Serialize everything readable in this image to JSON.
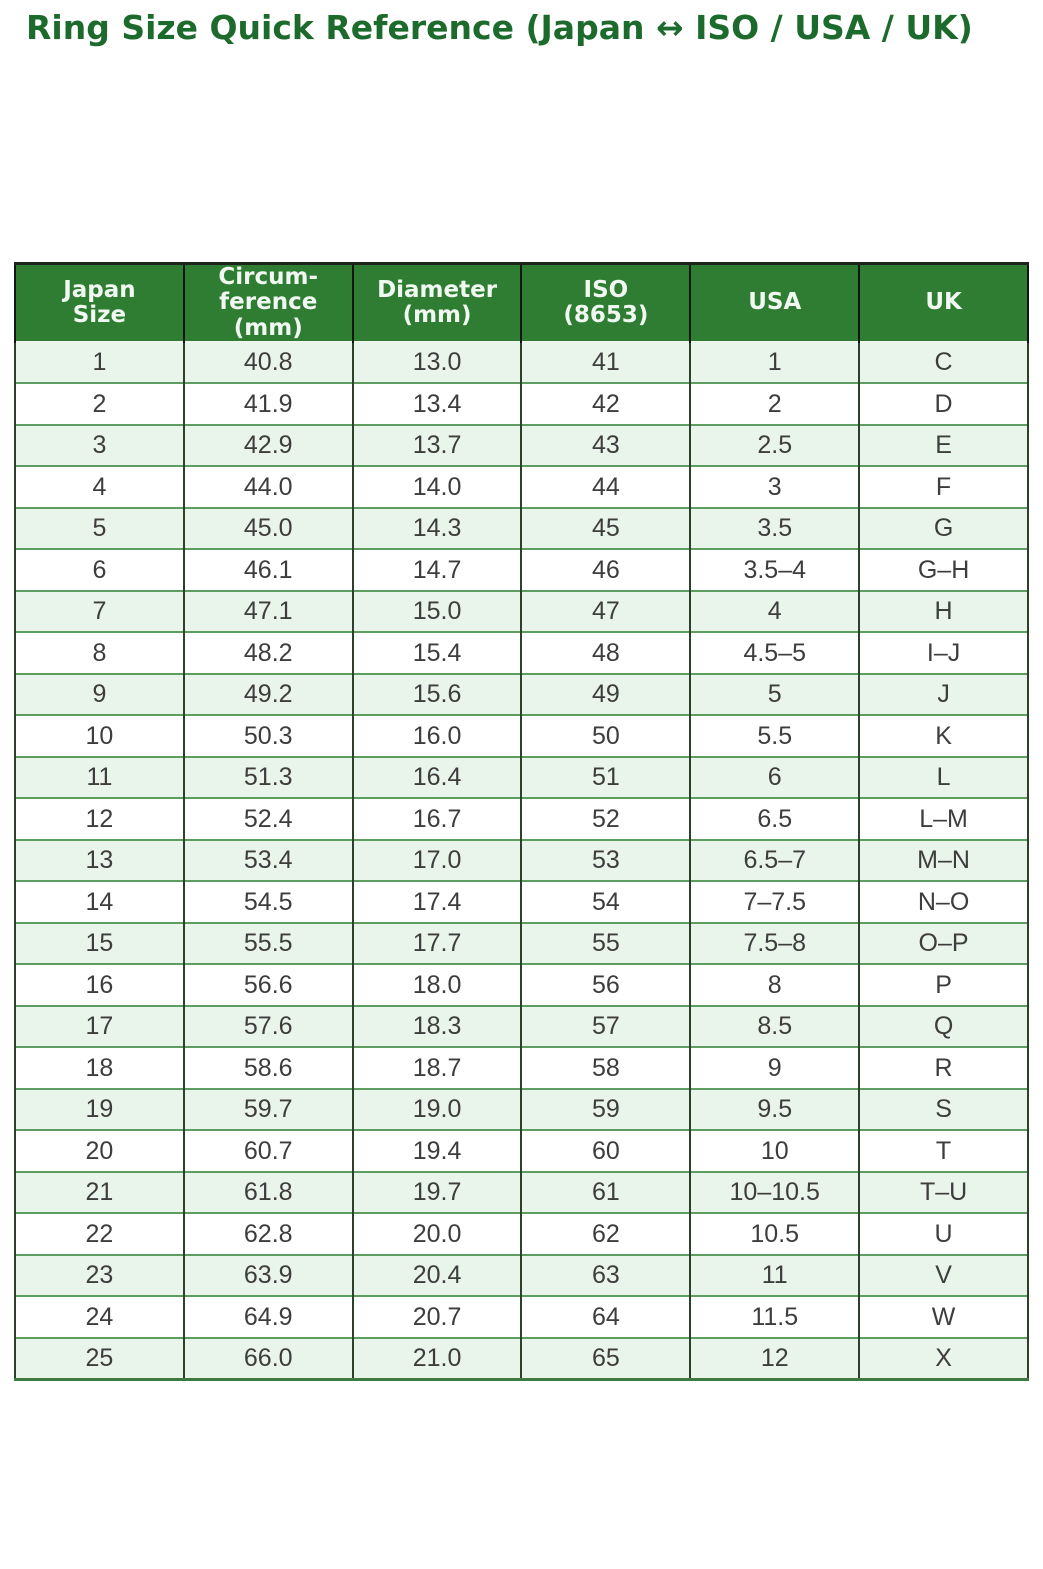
{
  "title": "Ring Size Quick Reference (Japan ↔ ISO / USA / UK)",
  "colors": {
    "title_text": "#1d6b2c",
    "header_bg": "#2e7d32",
    "header_text": "#f1f8f1",
    "row_alt_bg": "#e9f4ea",
    "row_bg": "#ffffff",
    "border_dark": "#2c402c",
    "border_green": "#5d9e60",
    "cell_text": "#3d3d3d"
  },
  "chart_data": {
    "type": "table",
    "title": "Ring Size Quick Reference (Japan ↔ ISO / USA / UK)",
    "columns": [
      "Japan Size",
      "Circumference (mm)",
      "Diameter (mm)",
      "ISO (8653)",
      "USA",
      "UK"
    ],
    "display_headers": [
      "Japan\nSize",
      "Circum-\nference\n(mm)",
      "Diameter\n(mm)",
      "ISO\n(8653)",
      "USA",
      "UK"
    ],
    "rows": [
      [
        "1",
        "40.8",
        "13.0",
        "41",
        "1",
        "C"
      ],
      [
        "2",
        "41.9",
        "13.4",
        "42",
        "2",
        "D"
      ],
      [
        "3",
        "42.9",
        "13.7",
        "43",
        "2.5",
        "E"
      ],
      [
        "4",
        "44.0",
        "14.0",
        "44",
        "3",
        "F"
      ],
      [
        "5",
        "45.0",
        "14.3",
        "45",
        "3.5",
        "G"
      ],
      [
        "6",
        "46.1",
        "14.7",
        "46",
        "3.5–4",
        "G–H"
      ],
      [
        "7",
        "47.1",
        "15.0",
        "47",
        "4",
        "H"
      ],
      [
        "8",
        "48.2",
        "15.4",
        "48",
        "4.5–5",
        "I–J"
      ],
      [
        "9",
        "49.2",
        "15.6",
        "49",
        "5",
        "J"
      ],
      [
        "10",
        "50.3",
        "16.0",
        "50",
        "5.5",
        "K"
      ],
      [
        "11",
        "51.3",
        "16.4",
        "51",
        "6",
        "L"
      ],
      [
        "12",
        "52.4",
        "16.7",
        "52",
        "6.5",
        "L–M"
      ],
      [
        "13",
        "53.4",
        "17.0",
        "53",
        "6.5–7",
        "M–N"
      ],
      [
        "14",
        "54.5",
        "17.4",
        "54",
        "7–7.5",
        "N–O"
      ],
      [
        "15",
        "55.5",
        "17.7",
        "55",
        "7.5–8",
        "O–P"
      ],
      [
        "16",
        "56.6",
        "18.0",
        "56",
        "8",
        "P"
      ],
      [
        "17",
        "57.6",
        "18.3",
        "57",
        "8.5",
        "Q"
      ],
      [
        "18",
        "58.6",
        "18.7",
        "58",
        "9",
        "R"
      ],
      [
        "19",
        "59.7",
        "19.0",
        "59",
        "9.5",
        "S"
      ],
      [
        "20",
        "60.7",
        "19.4",
        "60",
        "10",
        "T"
      ],
      [
        "21",
        "61.8",
        "19.7",
        "61",
        "10–10.5",
        "T–U"
      ],
      [
        "22",
        "62.8",
        "20.0",
        "62",
        "10.5",
        "U"
      ],
      [
        "23",
        "63.9",
        "20.4",
        "63",
        "11",
        "V"
      ],
      [
        "24",
        "64.9",
        "20.7",
        "64",
        "11.5",
        "W"
      ],
      [
        "25",
        "66.0",
        "21.0",
        "65",
        "12",
        "X"
      ]
    ]
  }
}
